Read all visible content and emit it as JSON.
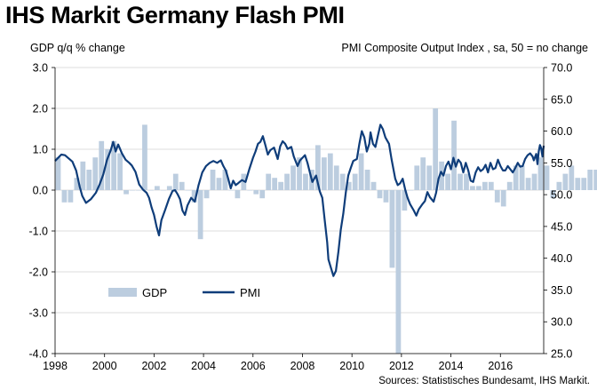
{
  "chart_data": {
    "type": "bar+line",
    "title": "IHS Markit Germany Flash PMI",
    "left_axis_label": "GDP q/q % change",
    "right_axis_label": "PMI Composite  Output Index , sa, 50 = no change",
    "source": "Sources: Statistisches Bundesamt, IHS Markit.",
    "left_ylim": [
      -4.0,
      3.0
    ],
    "right_ylim": [
      25.0,
      70.0
    ],
    "left_ticks": [
      "3.0",
      "2.0",
      "1.0",
      "0.0",
      "-1.0",
      "-2.0",
      "-3.0",
      "-4.0"
    ],
    "right_ticks": [
      "70.0",
      "65.0",
      "60.0",
      "55.0",
      "50.0",
      "45.0",
      "40.0",
      "35.0",
      "30.0",
      "25.0"
    ],
    "x_ticks": [
      "1998",
      "2000",
      "2002",
      "2004",
      "2006",
      "2008",
      "2010",
      "2012",
      "2014",
      "2016"
    ],
    "x_range": [
      1998.0,
      2017.75
    ],
    "grid": true,
    "legend": {
      "position": "bottom-left",
      "entries": [
        "GDP",
        "PMI"
      ]
    },
    "colors": {
      "gdp": "#bccddf",
      "pmi": "#0f3d7a"
    },
    "series": [
      {
        "name": "GDP",
        "kind": "bar",
        "axis": "left",
        "quarters_start": "1998 Q1",
        "values": [
          0.8,
          -0.3,
          -0.3,
          0.3,
          0.7,
          0.5,
          0.8,
          1.2,
          1.0,
          1.2,
          0.9,
          -0.1,
          0.0,
          0.0,
          1.6,
          0.0,
          0.1,
          0.0,
          0.1,
          0.4,
          0.2,
          0.0,
          -0.3,
          -1.2,
          -0.2,
          0.5,
          0.3,
          0.5,
          0.0,
          -0.2,
          0.4,
          0.0,
          -0.1,
          -0.2,
          0.4,
          0.3,
          0.2,
          0.4,
          0.6,
          0.8,
          0.4,
          0.5,
          1.1,
          0.8,
          0.9,
          0.6,
          0.4,
          0.2,
          0.4,
          0.9,
          0.5,
          0.2,
          -0.2,
          -0.3,
          -1.9,
          -4.0,
          -0.5,
          0.0,
          0.6,
          0.8,
          0.6,
          2.0,
          0.7,
          0.4,
          1.7,
          0.4,
          0.4,
          0.1,
          0.1,
          0.2,
          0.2,
          -0.3,
          -0.4,
          0.2,
          0.6,
          0.6,
          0.3,
          0.4,
          0.8,
          0.6,
          -0.2,
          0.2,
          0.4,
          0.6,
          0.3,
          0.3,
          0.5,
          0.5,
          0.7,
          0.4,
          0.5,
          0.3,
          0.3,
          0.4,
          0.9,
          0.6,
          0.7,
          0.8,
          0.8,
          1.0
        ]
      },
      {
        "name": "PMI",
        "kind": "line",
        "axis": "right",
        "points": [
          [
            1998.0,
            55.3
          ],
          [
            1998.1,
            55.7
          ],
          [
            1998.25,
            56.3
          ],
          [
            1998.4,
            56.2
          ],
          [
            1998.55,
            55.7
          ],
          [
            1998.7,
            55.2
          ],
          [
            1998.85,
            53.8
          ],
          [
            1999.0,
            51.2
          ],
          [
            1999.1,
            49.8
          ],
          [
            1999.25,
            48.7
          ],
          [
            1999.45,
            49.3
          ],
          [
            1999.65,
            50.3
          ],
          [
            1999.8,
            51.6
          ],
          [
            1999.95,
            53.2
          ],
          [
            2000.1,
            55.5
          ],
          [
            2000.25,
            57.0
          ],
          [
            2000.35,
            58.3
          ],
          [
            2000.45,
            56.8
          ],
          [
            2000.55,
            57.9
          ],
          [
            2000.7,
            56.5
          ],
          [
            2000.85,
            55.5
          ],
          [
            2001.0,
            55.0
          ],
          [
            2001.1,
            54.6
          ],
          [
            2001.25,
            53.6
          ],
          [
            2001.4,
            51.6
          ],
          [
            2001.55,
            50.8
          ],
          [
            2001.7,
            50.3
          ],
          [
            2001.8,
            49.5
          ],
          [
            2001.9,
            48.0
          ],
          [
            2002.0,
            46.8
          ],
          [
            2002.1,
            45.0
          ],
          [
            2002.2,
            43.6
          ],
          [
            2002.3,
            46.0
          ],
          [
            2002.45,
            47.6
          ],
          [
            2002.6,
            49.3
          ],
          [
            2002.75,
            50.6
          ],
          [
            2002.85,
            50.7
          ],
          [
            2002.95,
            50.1
          ],
          [
            2003.05,
            49.3
          ],
          [
            2003.15,
            47.5
          ],
          [
            2003.25,
            46.8
          ],
          [
            2003.35,
            48.3
          ],
          [
            2003.5,
            49.5
          ],
          [
            2003.65,
            48.9
          ],
          [
            2003.8,
            51.5
          ],
          [
            2003.95,
            53.5
          ],
          [
            2004.1,
            54.5
          ],
          [
            2004.25,
            55.0
          ],
          [
            2004.4,
            55.3
          ],
          [
            2004.55,
            55.0
          ],
          [
            2004.7,
            55.4
          ],
          [
            2004.8,
            54.5
          ],
          [
            2004.9,
            53.8
          ],
          [
            2005.0,
            52.5
          ],
          [
            2005.1,
            51.0
          ],
          [
            2005.2,
            52.2
          ],
          [
            2005.3,
            51.5
          ],
          [
            2005.4,
            51.8
          ],
          [
            2005.55,
            52.3
          ],
          [
            2005.7,
            52.0
          ],
          [
            2005.85,
            54.0
          ],
          [
            2006.0,
            55.8
          ],
          [
            2006.1,
            56.8
          ],
          [
            2006.2,
            58.0
          ],
          [
            2006.3,
            58.3
          ],
          [
            2006.4,
            59.2
          ],
          [
            2006.5,
            57.8
          ],
          [
            2006.6,
            56.3
          ],
          [
            2006.7,
            57.0
          ],
          [
            2006.85,
            57.4
          ],
          [
            2007.0,
            55.6
          ],
          [
            2007.1,
            57.6
          ],
          [
            2007.2,
            58.4
          ],
          [
            2007.3,
            58.0
          ],
          [
            2007.4,
            57.2
          ],
          [
            2007.55,
            57.5
          ],
          [
            2007.65,
            56.0
          ],
          [
            2007.8,
            54.5
          ],
          [
            2007.9,
            55.4
          ],
          [
            2008.0,
            55.8
          ],
          [
            2008.1,
            56.2
          ],
          [
            2008.2,
            55.0
          ],
          [
            2008.3,
            53.5
          ],
          [
            2008.4,
            52.0
          ],
          [
            2008.55,
            53.0
          ],
          [
            2008.7,
            50.5
          ],
          [
            2008.8,
            49.5
          ],
          [
            2008.9,
            46.0
          ],
          [
            2009.0,
            42.5
          ],
          [
            2009.05,
            39.8
          ],
          [
            2009.15,
            38.5
          ],
          [
            2009.25,
            37.2
          ],
          [
            2009.35,
            38.0
          ],
          [
            2009.45,
            41.0
          ],
          [
            2009.55,
            44.5
          ],
          [
            2009.65,
            47.0
          ],
          [
            2009.75,
            50.3
          ],
          [
            2009.85,
            53.0
          ],
          [
            2009.95,
            54.2
          ],
          [
            2010.05,
            55.3
          ],
          [
            2010.2,
            55.6
          ],
          [
            2010.3,
            58.0
          ],
          [
            2010.4,
            60.0
          ],
          [
            2010.5,
            59.0
          ],
          [
            2010.6,
            56.8
          ],
          [
            2010.7,
            58.0
          ],
          [
            2010.75,
            59.8
          ],
          [
            2010.85,
            58.0
          ],
          [
            2010.95,
            57.5
          ],
          [
            2011.05,
            59.3
          ],
          [
            2011.15,
            61.0
          ],
          [
            2011.25,
            60.3
          ],
          [
            2011.35,
            59.0
          ],
          [
            2011.5,
            58.0
          ],
          [
            2011.6,
            55.6
          ],
          [
            2011.75,
            52.5
          ],
          [
            2011.85,
            51.5
          ],
          [
            2011.95,
            51.8
          ],
          [
            2012.05,
            52.5
          ],
          [
            2012.15,
            50.8
          ],
          [
            2012.25,
            49.5
          ],
          [
            2012.35,
            48.5
          ],
          [
            2012.5,
            47.5
          ],
          [
            2012.6,
            46.7
          ],
          [
            2012.7,
            47.7
          ],
          [
            2012.85,
            48.5
          ],
          [
            2012.95,
            49.0
          ],
          [
            2013.05,
            50.4
          ],
          [
            2013.15,
            49.6
          ],
          [
            2013.3,
            48.9
          ],
          [
            2013.4,
            50.3
          ],
          [
            2013.5,
            52.5
          ],
          [
            2013.6,
            53.6
          ],
          [
            2013.7,
            53.0
          ],
          [
            2013.8,
            54.5
          ],
          [
            2013.9,
            55.2
          ],
          [
            2014.0,
            54.0
          ],
          [
            2014.1,
            55.8
          ],
          [
            2014.2,
            54.4
          ],
          [
            2014.3,
            55.5
          ],
          [
            2014.4,
            55.0
          ],
          [
            2014.5,
            53.5
          ],
          [
            2014.6,
            55.0
          ],
          [
            2014.7,
            53.8
          ],
          [
            2014.8,
            52.2
          ],
          [
            2014.9,
            52.0
          ],
          [
            2015.0,
            53.5
          ],
          [
            2015.1,
            54.3
          ],
          [
            2015.2,
            53.7
          ],
          [
            2015.3,
            54.0
          ],
          [
            2015.4,
            54.7
          ],
          [
            2015.5,
            53.5
          ],
          [
            2015.6,
            55.0
          ],
          [
            2015.7,
            54.0
          ],
          [
            2015.8,
            54.2
          ],
          [
            2015.9,
            55.5
          ],
          [
            2016.0,
            54.5
          ],
          [
            2016.1,
            53.8
          ],
          [
            2016.2,
            53.8
          ],
          [
            2016.3,
            54.5
          ],
          [
            2016.4,
            54.0
          ],
          [
            2016.5,
            53.5
          ],
          [
            2016.6,
            54.2
          ],
          [
            2016.7,
            55.0
          ],
          [
            2016.8,
            54.4
          ],
          [
            2016.9,
            54.5
          ],
          [
            2017.0,
            55.6
          ],
          [
            2017.1,
            56.2
          ],
          [
            2017.2,
            56.5
          ],
          [
            2017.3,
            56.0
          ],
          [
            2017.35,
            55.4
          ],
          [
            2017.45,
            56.4
          ],
          [
            2017.5,
            54.8
          ],
          [
            2017.55,
            56.8
          ],
          [
            2017.6,
            57.8
          ],
          [
            2017.65,
            57.3
          ],
          [
            2017.7,
            56.0
          ],
          [
            2017.75,
            57.7
          ]
        ]
      }
    ]
  }
}
